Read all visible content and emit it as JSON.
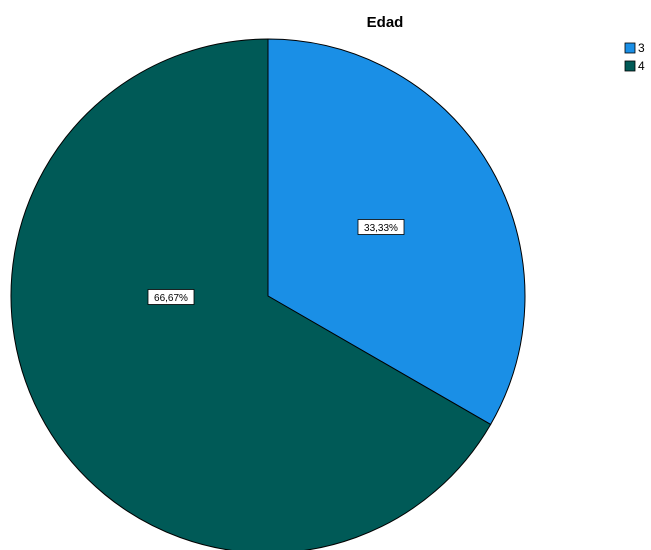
{
  "chart_data": {
    "type": "pie",
    "title": "Edad",
    "categories": [
      "3",
      "4"
    ],
    "values": [
      33.33,
      66.67
    ],
    "data_labels": [
      "33,33%",
      "66,67%"
    ],
    "colors": [
      "#1a8fe6",
      "#005a57"
    ],
    "start_angle": "12 o'clock",
    "direction": "clockwise",
    "legend_position": "top-right"
  }
}
